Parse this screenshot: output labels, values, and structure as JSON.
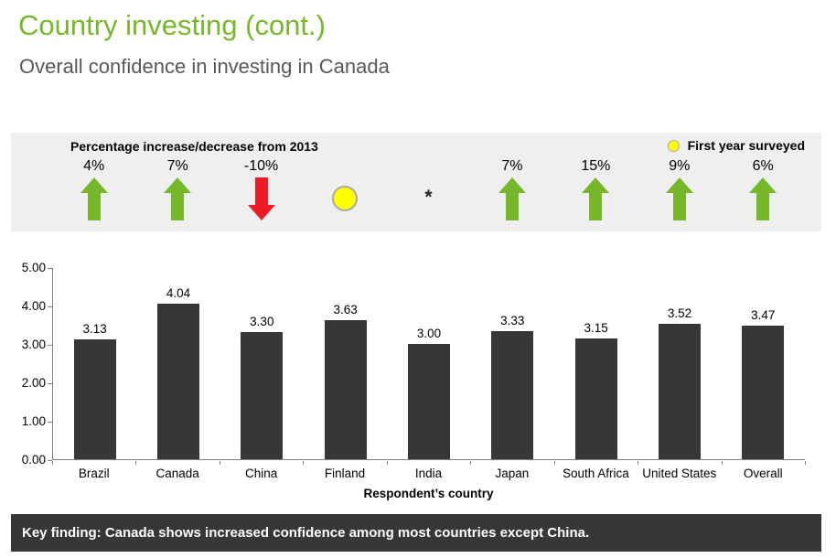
{
  "page": {
    "title": "Country investing (cont.)",
    "subtitle": "Overall confidence in investing in Canada"
  },
  "band": {
    "title": "Percentage increase/decrease from 2013",
    "legend_label": "First year surveyed",
    "indicators": [
      {
        "country": "Brazil",
        "label": "4%",
        "type": "up"
      },
      {
        "country": "Canada",
        "label": "7%",
        "type": "up"
      },
      {
        "country": "China",
        "label": "-10%",
        "type": "down"
      },
      {
        "country": "Finland",
        "label": "",
        "type": "first-year"
      },
      {
        "country": "India",
        "label": "",
        "type": "asterisk",
        "symbol": "*"
      },
      {
        "country": "Japan",
        "label": "7%",
        "type": "up"
      },
      {
        "country": "South Africa",
        "label": "15%",
        "type": "up"
      },
      {
        "country": "United States",
        "label": "9%",
        "type": "up"
      },
      {
        "country": "Overall",
        "label": "6%",
        "type": "up"
      }
    ]
  },
  "chart_data": {
    "type": "bar",
    "categories": [
      "Brazil",
      "Canada",
      "China",
      "Finland",
      "India",
      "Japan",
      "South Africa",
      "United States",
      "Overall"
    ],
    "values": [
      3.13,
      4.04,
      3.3,
      3.63,
      3.0,
      3.33,
      3.15,
      3.52,
      3.47
    ],
    "value_labels": [
      "3.13",
      "4.04",
      "3.30",
      "3.63",
      "3.00",
      "3.33",
      "3.15",
      "3.52",
      "3.47"
    ],
    "title": "Overall confidence in investing in Canada",
    "xlabel": "Respondent’s country",
    "ylabel": "",
    "ylim": [
      0,
      5
    ],
    "ytick_step": 1,
    "yticks": [
      "5.00",
      "4.00",
      "3.00",
      "2.00",
      "1.00",
      "0.00"
    ],
    "grid": false,
    "legend_position": "none"
  },
  "key_finding": {
    "text": "Key finding: Canada shows increased confidence among most countries except China."
  },
  "colors": {
    "accent_green": "#76b82a",
    "arrow_up": "#76b82a",
    "arrow_down": "#ed1c24",
    "first_year_dot": "#ffff00",
    "dot_border": "#a9a9a9",
    "band_bg": "#efefef",
    "bar": "#373737",
    "banner_bg": "#373737",
    "banner_text": "#ffffff",
    "subtitle_gray": "#595959"
  }
}
